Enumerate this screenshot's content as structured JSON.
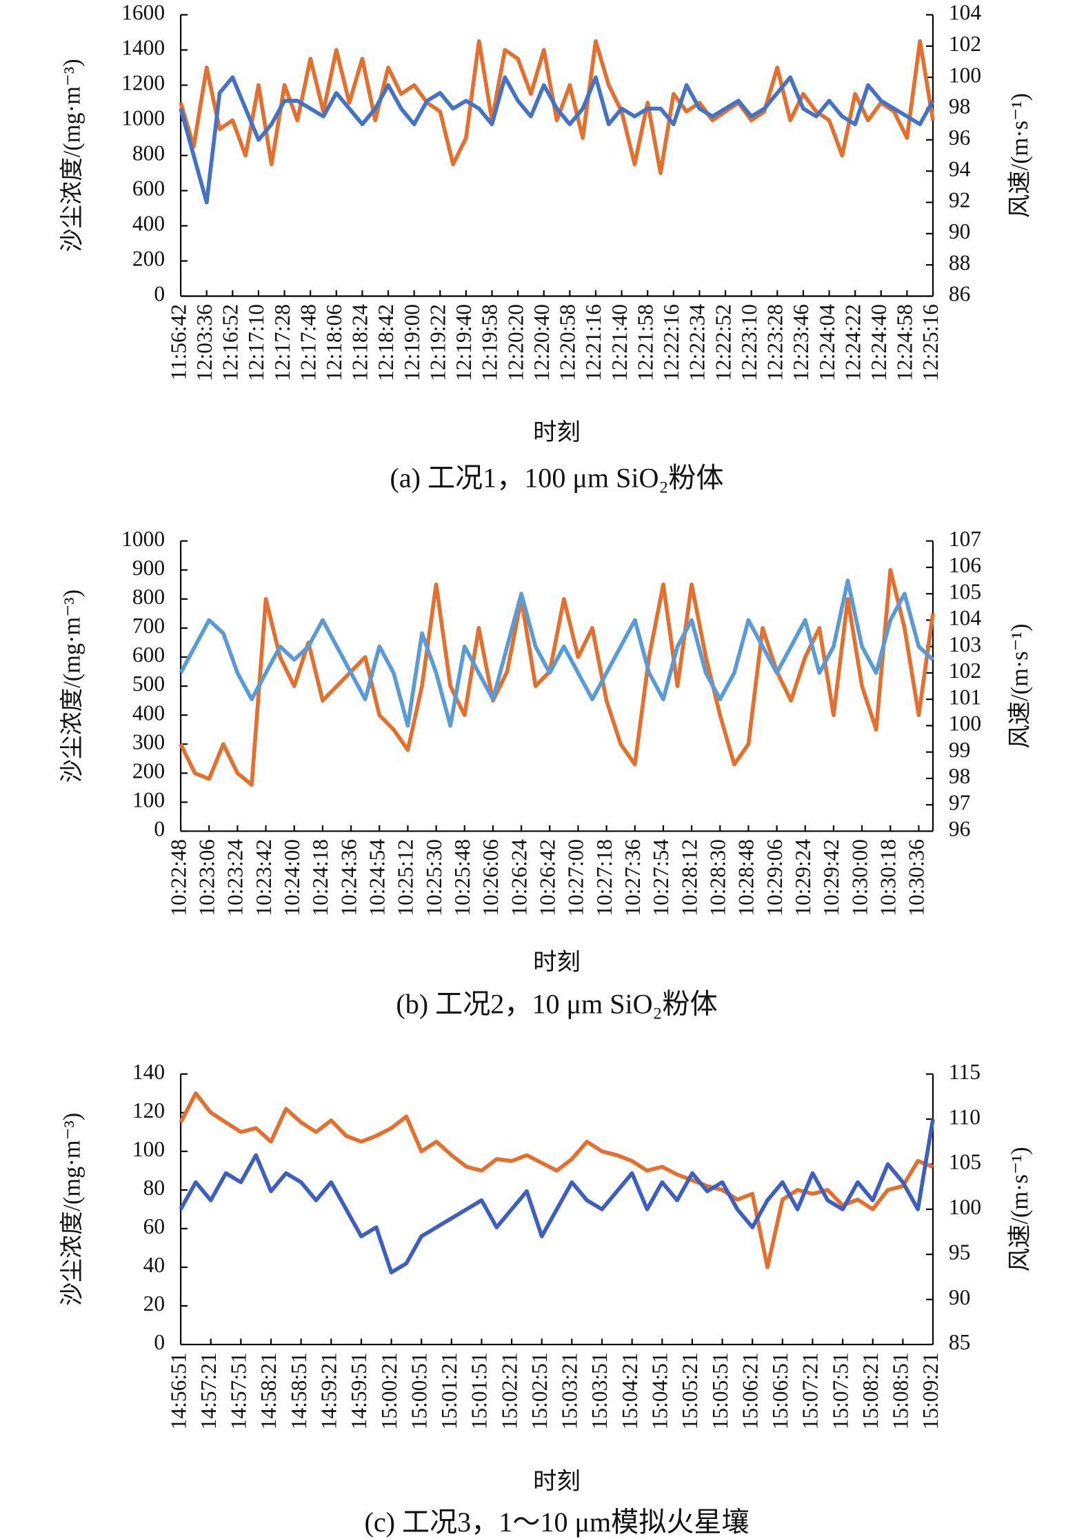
{
  "chart_data": [
    {
      "type": "line",
      "title": "(a)  工况1，100 μm SiO₂粉体",
      "xlabel": "时刻",
      "ylabel": "沙尘浓度/(mg·m⁻³)",
      "y2label": "风速/(m·s⁻¹)",
      "categories": [
        "11:56:42",
        null,
        "12:03:36",
        null,
        "12:16:52",
        null,
        "12:17:10",
        null,
        "12:17:28",
        null,
        "12:17:48",
        null,
        "12:18:06",
        null,
        "12:18:24",
        null,
        "12:18:42",
        null,
        "12:19:00",
        null,
        "12:19:22",
        null,
        "12:19:40",
        null,
        "12:19:58",
        null,
        "12:20:20",
        null,
        "12:20:40",
        null,
        "12:20:58",
        null,
        "12:21:16",
        null,
        "12:21:40",
        null,
        "12:21:58",
        null,
        "12:22:16",
        null,
        "12:22:34",
        null,
        "12:22:52",
        null,
        "12:23:10",
        null,
        "12:23:28",
        null,
        "12:23:46",
        null,
        "12:24:04",
        null,
        "12:24:22",
        null,
        "12:24:40",
        null,
        "12:24:58",
        null,
        "12:25:16"
      ],
      "series": [
        {
          "color": "#e2702f",
          "values": [
            1100,
            850,
            1300,
            950,
            1000,
            800,
            1200,
            750,
            1200,
            1000,
            1350,
            1050,
            1400,
            1100,
            1350,
            1000,
            1300,
            1150,
            1200,
            1100,
            1050,
            750,
            900,
            1450,
            1000,
            1400,
            1350,
            1150,
            1400,
            1000,
            1200,
            900,
            1450,
            1200,
            1050,
            750,
            1100,
            700,
            1150,
            1050,
            1100,
            1000,
            1050,
            1100,
            1000,
            1050,
            1300,
            1000,
            1150,
            1050,
            1000,
            800,
            1150,
            1000,
            1100,
            1050,
            900,
            1450,
            1000
          ]
        },
        {
          "color": "#4472c4",
          "axis": "y2",
          "values": [
            98,
            95,
            92,
            99,
            100,
            98,
            96,
            97,
            98.5,
            98.5,
            98,
            97.5,
            99,
            98,
            97,
            98,
            99.5,
            98,
            97,
            98.5,
            99,
            98,
            98.5,
            98,
            97,
            100,
            98.5,
            97.5,
            99.5,
            98,
            97,
            98,
            100,
            97,
            98,
            97.5,
            98,
            98,
            97,
            99.5,
            98,
            97.5,
            98,
            98.5,
            97.5,
            98,
            99,
            100,
            98,
            97.5,
            98.5,
            97.5,
            97,
            99.5,
            98.5,
            98,
            97.5,
            97,
            98.5
          ]
        }
      ],
      "ylim": [
        0,
        1600
      ],
      "yticks": [
        0,
        200,
        400,
        600,
        800,
        1000,
        1200,
        1400,
        1600
      ],
      "y2lim": [
        86,
        104
      ],
      "y2ticks": [
        86,
        88,
        90,
        92,
        94,
        96,
        98,
        100,
        102,
        104
      ]
    },
    {
      "type": "line",
      "title": "(b)  工况2，10 μm SiO₂粉体",
      "xlabel": "时刻",
      "ylabel": "沙尘浓度/(mg·m⁻³)",
      "y2label": "风速/(m·s⁻¹)",
      "categories": [
        "10:22:48",
        null,
        "10:23:06",
        null,
        "10:23:24",
        null,
        "10:23:42",
        null,
        "10:24:00",
        null,
        "10:24:18",
        null,
        "10:24:36",
        null,
        "10:24:54",
        null,
        "10:25:12",
        null,
        "10:25:30",
        null,
        "10:25:48",
        null,
        "10:26:06",
        null,
        "10:26:24",
        null,
        "10:26:42",
        null,
        "10:27:00",
        null,
        "10:27:18",
        null,
        "10:27:36",
        null,
        "10:27:54",
        null,
        "10:28:12",
        null,
        "10:28:30",
        null,
        "10:28:48",
        null,
        "10:29:06",
        null,
        "10:29:24",
        null,
        "10:29:42",
        null,
        "10:30:00",
        null,
        "10:30:18",
        null,
        "10:30:36",
        null
      ],
      "series": [
        {
          "color": "#e2702f",
          "values": [
            300,
            200,
            180,
            300,
            200,
            160,
            800,
            600,
            500,
            650,
            450,
            500,
            550,
            600,
            400,
            350,
            280,
            500,
            850,
            500,
            400,
            700,
            450,
            550,
            800,
            500,
            550,
            800,
            600,
            700,
            450,
            300,
            230,
            600,
            850,
            500,
            850,
            600,
            400,
            230,
            300,
            700,
            550,
            450,
            600,
            700,
            400,
            800,
            500,
            350,
            900,
            700,
            400,
            750
          ]
        },
        {
          "color": "#5b9bd5",
          "axis": "y2",
          "values": [
            102,
            103,
            104,
            103.5,
            102,
            101,
            102,
            103,
            102.5,
            103,
            104,
            103,
            102,
            101,
            103,
            102,
            100,
            103.5,
            102,
            100,
            103,
            102,
            101,
            103,
            105,
            103,
            102,
            103,
            102,
            101,
            102,
            103,
            104,
            102,
            101,
            103,
            104,
            102,
            101,
            102,
            104,
            103,
            102,
            103,
            104,
            102,
            103,
            105.5,
            103,
            102,
            104,
            105,
            103,
            102.5
          ]
        }
      ],
      "ylim": [
        0,
        1000
      ],
      "yticks": [
        0,
        100,
        200,
        300,
        400,
        500,
        600,
        700,
        800,
        900,
        1000
      ],
      "y2lim": [
        96,
        107
      ],
      "y2ticks": [
        96,
        97,
        98,
        99,
        100,
        101,
        102,
        103,
        104,
        105,
        106,
        107
      ]
    },
    {
      "type": "line",
      "title": "(c)  工况3，1～10 μm模拟火星壤",
      "xlabel": "时刻",
      "ylabel": "沙尘浓度/(mg·m⁻³)",
      "y2label": "风速/(m·s⁻¹)",
      "categories": [
        "14:56:51",
        null,
        "14:57:21",
        null,
        "14:57:51",
        null,
        "14:58:21",
        null,
        "14:58:51",
        null,
        "14:59:21",
        null,
        "14:59:51",
        null,
        "15:00:21",
        null,
        "15:00:51",
        null,
        "15:01:21",
        null,
        "15:01:51",
        null,
        "15:02:21",
        null,
        "15:02:51",
        null,
        "15:03:21",
        null,
        "15:03:51",
        null,
        "15:04:21",
        null,
        "15:04:51",
        null,
        "15:05:21",
        null,
        "15:05:51",
        null,
        "15:06:21",
        null,
        "15:06:51",
        null,
        "15:07:21",
        null,
        "15:07:51",
        null,
        "15:08:21",
        null,
        "15:08:51",
        null,
        "15:09:21"
      ],
      "series": [
        {
          "color": "#e2702f",
          "values": [
            115,
            130,
            120,
            115,
            110,
            112,
            105,
            122,
            115,
            110,
            116,
            108,
            105,
            108,
            112,
            118,
            100,
            105,
            98,
            92,
            90,
            96,
            95,
            98,
            94,
            90,
            96,
            105,
            100,
            98,
            95,
            90,
            92,
            88,
            85,
            82,
            80,
            75,
            78,
            40,
            75,
            80,
            78,
            80,
            72,
            75,
            70,
            80,
            82,
            95,
            92
          ]
        },
        {
          "color": "#3f5fbf",
          "axis": "y2",
          "values": [
            100,
            103,
            101,
            104,
            103,
            106,
            102,
            104,
            103,
            101,
            103,
            100,
            97,
            98,
            93,
            94,
            97,
            98,
            99,
            100,
            101,
            98,
            100,
            102,
            97,
            100,
            103,
            101,
            100,
            102,
            104,
            100,
            103,
            101,
            104,
            102,
            103,
            100,
            98,
            101,
            103,
            100,
            104,
            101,
            100,
            103,
            101,
            105,
            103,
            100,
            110
          ]
        }
      ],
      "ylim": [
        0,
        140
      ],
      "yticks": [
        0,
        20,
        40,
        60,
        80,
        100,
        120,
        140
      ],
      "y2lim": [
        85,
        115
      ],
      "y2ticks": [
        85,
        90,
        95,
        100,
        105,
        110,
        115
      ]
    }
  ]
}
